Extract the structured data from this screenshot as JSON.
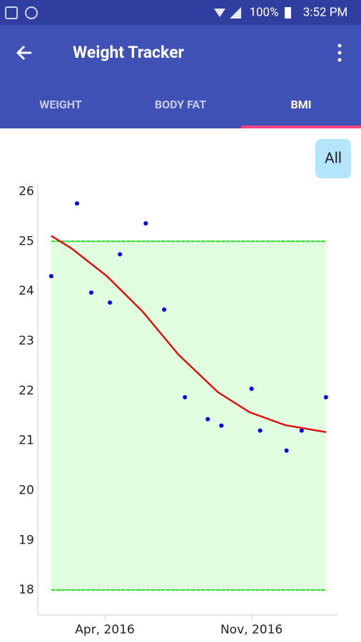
{
  "status_bar": {
    "battery": "100%",
    "time": "3:52 PM"
  },
  "app_bar": {
    "title": "Weight Tracker"
  },
  "tabs": [
    "WEIGHT",
    "BODY FAT",
    "BMI"
  ],
  "range_button": "All",
  "chart_data": {
    "type": "scatter",
    "xlim": [
      -0.2,
      14.1
    ],
    "xticks": [
      {
        "value": 3,
        "label": "Apr, 2016"
      },
      {
        "value": 10,
        "label": "Nov, 2016"
      }
    ],
    "ylim": [
      17.5,
      26.15
    ],
    "yticks": [
      18,
      19,
      20,
      21,
      22,
      23,
      24,
      25,
      26
    ],
    "target_range": [
      18,
      25
    ],
    "band_color": "#e0fde0",
    "band_line_color": "#22dd22",
    "series": [
      {
        "type": "scatter",
        "color": "#0000ee",
        "x": [
          0.44,
          1.67,
          2.35,
          3.24,
          3.72,
          4.95,
          5.83,
          6.82,
          7.91,
          8.56,
          10.0,
          10.41,
          11.67,
          12.39,
          13.55
        ],
        "values": [
          24.3,
          25.76,
          23.97,
          23.77,
          24.74,
          25.36,
          23.63,
          21.87,
          21.43,
          21.3,
          22.04,
          21.2,
          20.8,
          21.2,
          21.87
        ]
      },
      {
        "type": "line",
        "color": "#dd1111",
        "x": [
          0.44,
          1.4,
          3.1,
          4.8,
          6.5,
          8.4,
          9.9,
          11.6,
          13.55
        ],
        "values": [
          25.11,
          24.86,
          24.3,
          23.59,
          22.73,
          21.97,
          21.57,
          21.31,
          21.17
        ]
      }
    ]
  }
}
